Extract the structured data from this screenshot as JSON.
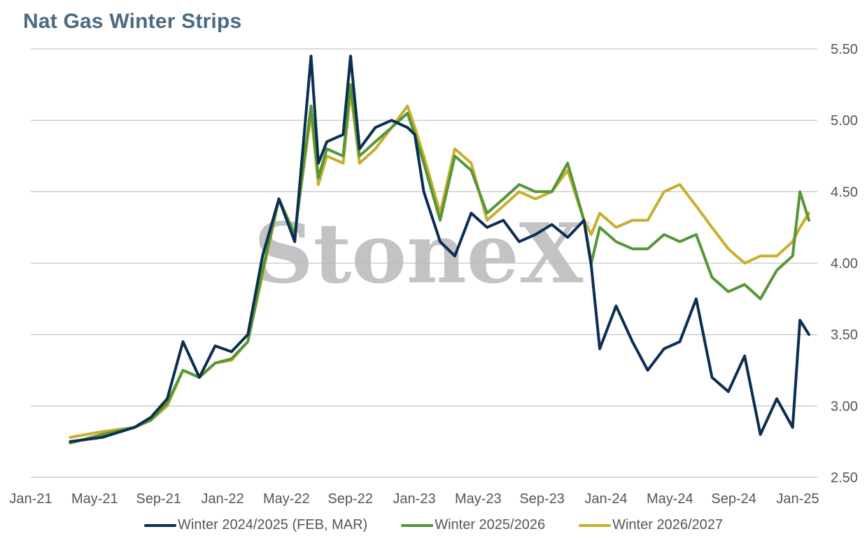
{
  "chart_data": {
    "type": "line",
    "title": "Nat Gas Winter Strips",
    "xlabel": "",
    "ylabel": "",
    "ylim": [
      2.5,
      5.5
    ],
    "y_ticks": [
      "2.50",
      "3.00",
      "3.50",
      "4.00",
      "4.50",
      "5.00",
      "5.50"
    ],
    "y_axis_side": "right",
    "grid": true,
    "legend_position": "bottom",
    "x_ticks": [
      "Jan-21",
      "May-21",
      "Sep-21",
      "Jan-22",
      "May-22",
      "Sep-22",
      "Jan-23",
      "May-23",
      "Sep-23",
      "Jan-24",
      "May-24",
      "Sep-24",
      "Jan-25"
    ],
    "x_dates": [
      "2021-01-01",
      "2021-03-01",
      "2021-05-01",
      "2021-07-01",
      "2021-08-01",
      "2021-09-01",
      "2021-10-01",
      "2021-11-01",
      "2021-12-01",
      "2022-01-01",
      "2022-02-01",
      "2022-03-01",
      "2022-04-01",
      "2022-05-01",
      "2022-06-01",
      "2022-06-15",
      "2022-07-01",
      "2022-08-01",
      "2022-08-15",
      "2022-09-01",
      "2022-10-01",
      "2022-11-01",
      "2022-12-01",
      "2022-12-15",
      "2023-01-01",
      "2023-02-01",
      "2023-03-01",
      "2023-04-01",
      "2023-05-01",
      "2023-06-01",
      "2023-07-01",
      "2023-08-01",
      "2023-09-01",
      "2023-10-01",
      "2023-11-01",
      "2023-11-15",
      "2023-12-01",
      "2024-01-01",
      "2024-02-01",
      "2024-03-01",
      "2024-04-01",
      "2024-05-01",
      "2024-06-01",
      "2024-07-01",
      "2024-08-01",
      "2024-09-01",
      "2024-10-01",
      "2024-11-01",
      "2024-12-01",
      "2024-12-15",
      "2025-01-01"
    ],
    "series": [
      {
        "name": "Winter 2024/2025 (FEB, MAR)",
        "color": "#0b2e52",
        "values": [
          null,
          2.75,
          2.78,
          2.85,
          2.92,
          3.05,
          3.45,
          3.2,
          3.42,
          3.38,
          3.5,
          4.05,
          4.45,
          4.15,
          5.45,
          4.7,
          4.85,
          4.9,
          5.45,
          4.8,
          4.95,
          5.0,
          4.95,
          4.9,
          4.5,
          4.15,
          4.05,
          4.35,
          4.25,
          4.3,
          4.15,
          4.2,
          4.27,
          4.18,
          4.3,
          3.98,
          3.4,
          3.7,
          3.45,
          3.25,
          3.4,
          3.45,
          3.75,
          3.2,
          3.1,
          3.35,
          2.8,
          3.05,
          2.85,
          3.6,
          3.5
        ]
      },
      {
        "name": "Winter 2025/2026",
        "color": "#569637",
        "values": [
          null,
          2.74,
          2.8,
          2.85,
          2.9,
          3.02,
          3.25,
          3.2,
          3.3,
          3.33,
          3.45,
          3.95,
          4.45,
          4.2,
          5.1,
          4.6,
          4.8,
          4.75,
          5.25,
          4.75,
          4.85,
          4.95,
          5.05,
          4.9,
          4.7,
          4.3,
          4.75,
          4.65,
          4.35,
          4.45,
          4.55,
          4.5,
          4.5,
          4.7,
          4.3,
          4.0,
          4.25,
          4.15,
          4.1,
          4.1,
          4.2,
          4.15,
          4.2,
          3.9,
          3.8,
          3.85,
          3.75,
          3.95,
          4.05,
          4.5,
          4.3
        ]
      },
      {
        "name": "Winter 2026/2027",
        "color": "#c9ae2e",
        "values": [
          null,
          2.78,
          2.82,
          2.85,
          2.9,
          3.0,
          3.25,
          3.2,
          3.3,
          3.32,
          3.45,
          3.92,
          4.45,
          4.2,
          5.05,
          4.55,
          4.75,
          4.7,
          5.2,
          4.7,
          4.8,
          4.95,
          5.1,
          4.95,
          4.75,
          4.35,
          4.8,
          4.7,
          4.3,
          4.4,
          4.5,
          4.45,
          4.5,
          4.65,
          4.3,
          4.2,
          4.35,
          4.25,
          4.3,
          4.3,
          4.5,
          4.55,
          4.4,
          4.25,
          4.1,
          4.0,
          4.05,
          4.05,
          4.15,
          4.25,
          4.35
        ]
      }
    ]
  },
  "watermark": {
    "text": "StoneX",
    "registered_mark": "®"
  },
  "colors": {
    "title": "#4a6a82",
    "gridline": "#c8c8c8",
    "tick_text": "#555555"
  }
}
